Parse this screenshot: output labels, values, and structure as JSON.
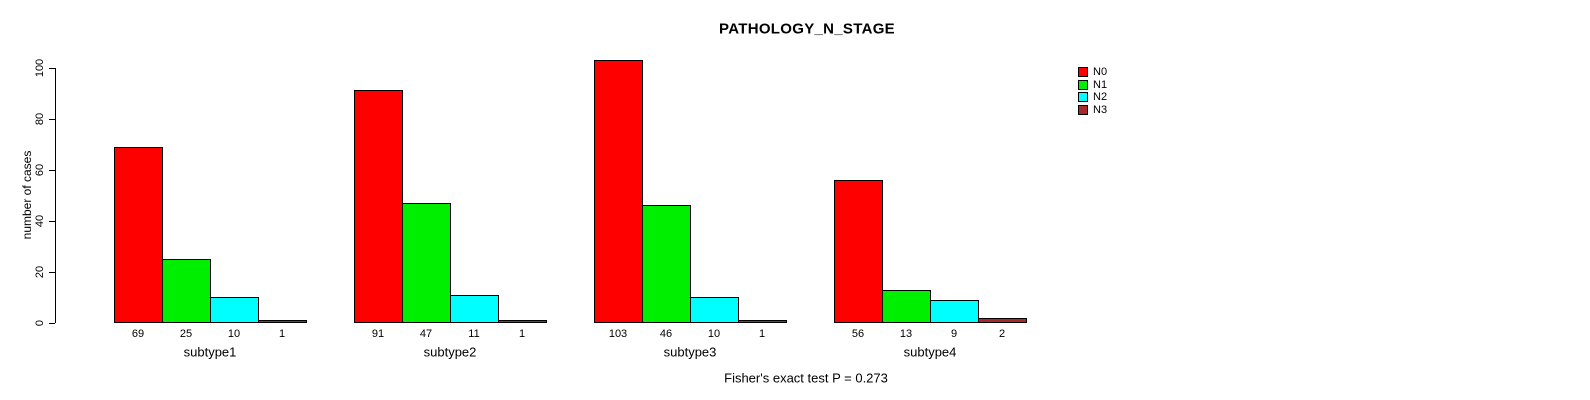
{
  "chart_data": {
    "type": "bar",
    "title": "PATHOLOGY_N_STAGE",
    "xlabel": "",
    "ylabel": "number of cases",
    "categories": [
      "subtype1",
      "subtype2",
      "subtype3",
      "subtype4"
    ],
    "series": [
      {
        "name": "N0",
        "color": "#FF0000",
        "values": [
          69,
          91,
          103,
          56
        ]
      },
      {
        "name": "N1",
        "color": "#00EE00",
        "values": [
          25,
          47,
          46,
          13
        ]
      },
      {
        "name": "N2",
        "color": "#00FFFF",
        "values": [
          10,
          11,
          10,
          9
        ]
      },
      {
        "name": "N3",
        "color": "#A52A2A",
        "values": [
          1,
          1,
          1,
          2
        ]
      }
    ],
    "ylim": [
      0,
      100
    ],
    "yticks": [
      0,
      20,
      40,
      60,
      80,
      100
    ],
    "bar_value_labels": true,
    "grid": false,
    "legend_position": "right",
    "background": "#FFFFFF"
  },
  "caption": "Fisher's exact test P = 0.273"
}
